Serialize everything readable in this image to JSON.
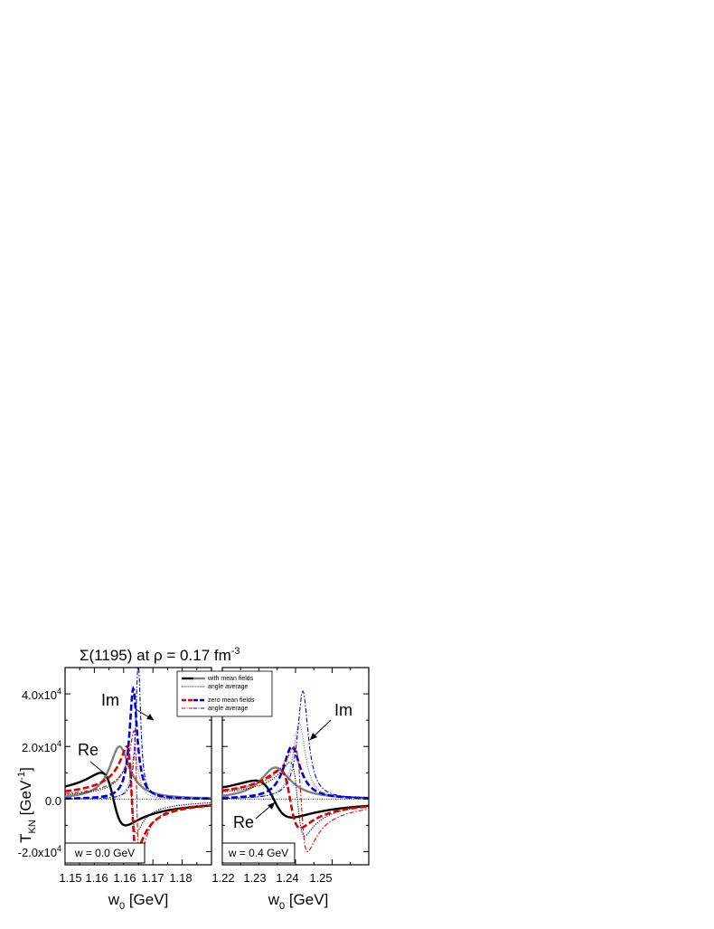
{
  "figure": {
    "title_main": "Σ(1195)  at ρ = 0.17 fm",
    "title_sup": "-3",
    "ylabel_main": "T",
    "ylabel_sub": "KN",
    "ylabel_unit": " [GeV",
    "ylabel_unit_sup": "-1",
    "ylabel_unit_end": "]",
    "xlabel_main": "w",
    "xlabel_sub": "0",
    "xlabel_unit": " [GeV]",
    "legend": {
      "with_mean_fields": "with mean fields",
      "angle_average_1": "angle average",
      "zero_mean_fields": "zero mean fields",
      "angle_average_2": "angle average"
    },
    "colors": {
      "black": "#000000",
      "gray": "#808080",
      "red": "#e00000",
      "blue": "#0000dd"
    }
  },
  "chart_data": [
    {
      "type": "line",
      "panel": "left",
      "box_label": "w = 0.0 GeV",
      "xlim": [
        1.15,
        1.2
      ],
      "ylim": [
        -25000,
        50000
      ],
      "x_ticks": [
        1.15,
        1.16,
        1.17,
        1.18
      ],
      "x_tick_labels": [
        "1.15",
        "1.16",
        "1.17",
        "1.18"
      ],
      "y_ticks": [
        -20000,
        0,
        20000,
        40000
      ],
      "y_tick_labels": [
        "-2.0x10",
        "0.0",
        "2.0x10",
        "4.0x10"
      ],
      "y_tick_sups": [
        "4",
        "",
        "4",
        "4"
      ],
      "annotations": [
        "Im",
        "Re"
      ],
      "series": [
        {
          "name": "with mean fields",
          "part": "Re",
          "color": "black",
          "style": "solid",
          "x0": 1.1665,
          "g": 0.0042,
          "amp": 10000
        },
        {
          "name": "with mean fields",
          "part": "Im",
          "color": "gray",
          "style": "solid",
          "x0": 1.1686,
          "g": 0.0042,
          "amp": 20000
        },
        {
          "name": "angle average",
          "part": "Re",
          "color": "black",
          "style": "dotted",
          "x0": 1.1728,
          "g": 0.0015,
          "amp": 13000
        },
        {
          "name": "angle average",
          "part": "Im",
          "color": "gray",
          "style": "dotted",
          "x0": 1.1738,
          "g": 0.0015,
          "amp": 18000
        },
        {
          "name": "zero mean fields",
          "part": "Re",
          "color": "red",
          "style": "dash",
          "x0": 1.1728,
          "g": 0.0017,
          "amp": 20000
        },
        {
          "name": "zero mean fields",
          "part": "Im",
          "color": "blue",
          "style": "dash",
          "x0": 1.1733,
          "g": 0.0016,
          "amp": 42000
        },
        {
          "name": "angle average",
          "part": "Re",
          "color": "red",
          "style": "dashdot",
          "x0": 1.1745,
          "g": 0.001,
          "amp": 26000
        },
        {
          "name": "angle average",
          "part": "Im",
          "color": "blue",
          "style": "dashdot",
          "x0": 1.175,
          "g": 0.001,
          "amp": 52000
        }
      ]
    },
    {
      "type": "line",
      "panel": "right",
      "box_label": "w = 0.4 GeV",
      "xlim": [
        1.22,
        1.26
      ],
      "ylim": [
        -25000,
        50000
      ],
      "x_ticks": [
        1.22,
        1.23,
        1.24,
        1.25
      ],
      "x_tick_labels": [
        "1.22",
        "1.23",
        "1.24",
        "1.25"
      ],
      "annotations": [
        "Im",
        "Re"
      ],
      "series": [
        {
          "name": "with mean fields",
          "part": "Re",
          "color": "black",
          "style": "solid",
          "x0": 1.234,
          "g": 0.005,
          "amp": 7000
        },
        {
          "name": "with mean fields",
          "part": "Im",
          "color": "gray",
          "style": "solid",
          "x0": 1.2345,
          "g": 0.005,
          "amp": 12000
        },
        {
          "name": "angle average",
          "part": "Re",
          "color": "black",
          "style": "dotted",
          "x0": 1.2405,
          "g": 0.002,
          "amp": 14000
        },
        {
          "name": "angle average",
          "part": "Im",
          "color": "gray",
          "style": "dotted",
          "x0": 1.241,
          "g": 0.002,
          "amp": 29000
        },
        {
          "name": "zero mean fields",
          "part": "Re",
          "color": "red",
          "style": "dash",
          "x0": 1.2385,
          "g": 0.0028,
          "amp": 11000
        },
        {
          "name": "zero mean fields",
          "part": "Im",
          "color": "blue",
          "style": "dash",
          "x0": 1.239,
          "g": 0.0028,
          "amp": 20000
        },
        {
          "name": "angle average",
          "part": "Re",
          "color": "red",
          "style": "dashdot",
          "x0": 1.2415,
          "g": 0.0018,
          "amp": 20000
        },
        {
          "name": "angle average",
          "part": "Im",
          "color": "blue",
          "style": "dashdot",
          "x0": 1.242,
          "g": 0.0018,
          "amp": 41000
        }
      ]
    }
  ]
}
